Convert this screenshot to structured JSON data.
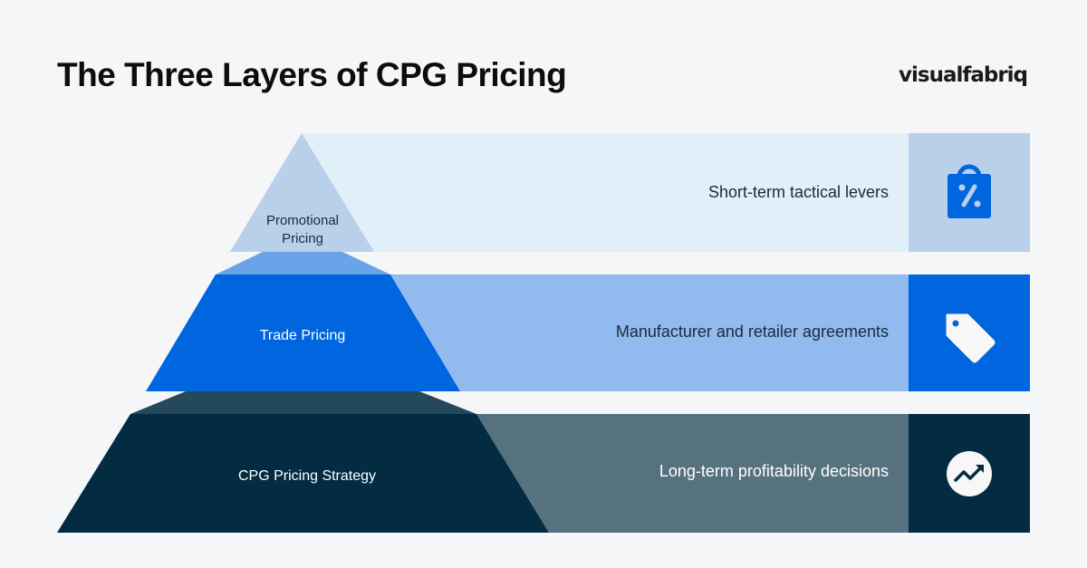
{
  "title": "The Three Layers of CPG Pricing",
  "logo": "visualfabriq",
  "layers": [
    {
      "name_line1": "Promotional",
      "name_line2": "Pricing",
      "description": "Short-term tactical levers",
      "icon": "shopping-bag-percent-icon"
    },
    {
      "name": "Trade Pricing",
      "description": "Manufacturer and retailer agreements",
      "icon": "price-tag-icon"
    },
    {
      "name": "CPG Pricing Strategy",
      "description": "Long-term profitability decisions",
      "icon": "trending-up-icon"
    }
  ],
  "colors": {
    "background": "#f4f6f8",
    "promo": "#b8d0ea",
    "promo_band": "#e1eff9",
    "trade": "#0066e0",
    "trade_band": "#93baee",
    "strategy": "#032b42",
    "strategy_band": "#57727f"
  }
}
